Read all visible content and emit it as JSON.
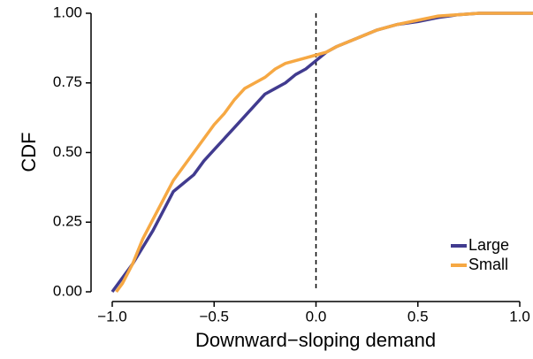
{
  "chart_data": {
    "type": "line",
    "xlabel": "Downward−sloping demand",
    "ylabel": "CDF",
    "xlim": [
      -1.104,
      1.065
    ],
    "ylim": [
      0,
      1
    ],
    "xticks": [
      {
        "value": -1,
        "label": "−1.0"
      },
      {
        "value": -0.5,
        "label": "−0.5"
      },
      {
        "value": 0,
        "label": "0.0"
      },
      {
        "value": 0.5,
        "label": "0.5"
      },
      {
        "value": 1,
        "label": "1.0"
      }
    ],
    "yticks": [
      {
        "value": 0,
        "label": "0.00"
      },
      {
        "value": 0.25,
        "label": "0.25"
      },
      {
        "value": 0.5,
        "label": "0.50"
      },
      {
        "value": 0.75,
        "label": "0.75"
      },
      {
        "value": 1,
        "label": "1.00"
      }
    ],
    "vline": 0,
    "legend_position": "bottom-right",
    "series": [
      {
        "name": "Large",
        "color": "#413b8f",
        "x": [
          -1.0,
          -0.95,
          -0.9,
          -0.85,
          -0.8,
          -0.75,
          -0.7,
          -0.65,
          -0.6,
          -0.55,
          -0.5,
          -0.45,
          -0.4,
          -0.35,
          -0.3,
          -0.25,
          -0.2,
          -0.15,
          -0.1,
          -0.05,
          0,
          0.05,
          0.1,
          0.2,
          0.3,
          0.4,
          0.5,
          0.6,
          0.7,
          0.8,
          1.065
        ],
        "values": [
          0,
          0.05,
          0.1,
          0.16,
          0.22,
          0.29,
          0.36,
          0.39,
          0.42,
          0.47,
          0.51,
          0.55,
          0.59,
          0.63,
          0.67,
          0.71,
          0.73,
          0.75,
          0.78,
          0.8,
          0.83,
          0.86,
          0.88,
          0.91,
          0.94,
          0.96,
          0.97,
          0.985,
          0.995,
          1,
          1
        ]
      },
      {
        "name": "Small",
        "color": "#f6a843",
        "x": [
          -0.98,
          -0.95,
          -0.9,
          -0.85,
          -0.8,
          -0.75,
          -0.7,
          -0.65,
          -0.6,
          -0.55,
          -0.5,
          -0.45,
          -0.4,
          -0.35,
          -0.3,
          -0.25,
          -0.2,
          -0.15,
          -0.1,
          -0.05,
          0,
          0.05,
          0.1,
          0.2,
          0.3,
          0.4,
          0.5,
          0.6,
          0.7,
          0.8,
          1.065
        ],
        "values": [
          0,
          0.03,
          0.1,
          0.19,
          0.26,
          0.33,
          0.4,
          0.45,
          0.5,
          0.55,
          0.6,
          0.64,
          0.69,
          0.73,
          0.75,
          0.77,
          0.8,
          0.82,
          0.83,
          0.84,
          0.85,
          0.86,
          0.88,
          0.91,
          0.94,
          0.96,
          0.975,
          0.99,
          0.995,
          1,
          1
        ]
      }
    ]
  }
}
